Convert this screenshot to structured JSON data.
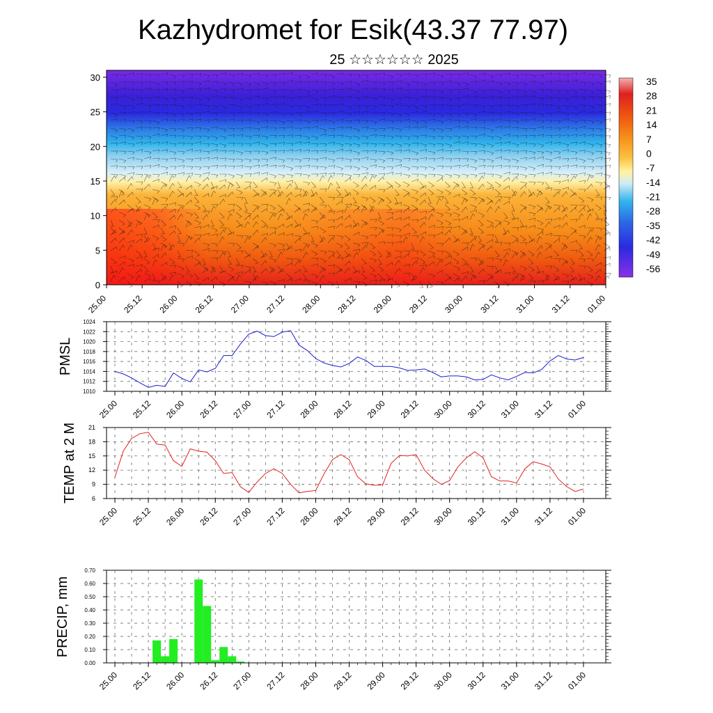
{
  "title": "Kazhydromet for Esik(43.37 77.97)",
  "subtitle": "25 ☆☆☆☆☆☆ 2025",
  "time_ticks": [
    "25.00",
    "25.12",
    "26.00",
    "26.12",
    "27.00",
    "27.12",
    "28.00",
    "28.12",
    "29.00",
    "29.12",
    "30.00",
    "30.12",
    "31.00",
    "31.12",
    "01.00"
  ],
  "colors": {
    "pmsl_line": "#1a1ad6",
    "temp_line": "#e02020",
    "precip_bar": "#22ee22"
  },
  "chart_data": [
    {
      "type": "heatmap",
      "title": "",
      "x_ticks": [
        "25.00",
        "25.12",
        "26.00",
        "26.12",
        "27.00",
        "27.12",
        "28.00",
        "28.12",
        "29.00",
        "29.12",
        "30.00",
        "30.12",
        "31.00",
        "31.12",
        "01.00"
      ],
      "y_ticks": [
        0,
        5,
        10,
        15,
        20,
        25,
        30
      ],
      "ylim": [
        0,
        31
      ],
      "colorbar_labels": [
        35,
        28,
        21,
        14,
        7,
        0,
        -7,
        -14,
        -21,
        -28,
        -35,
        -42,
        -49,
        -56
      ],
      "overlay": "wind barbs"
    },
    {
      "type": "line",
      "ylabel": "PMSL",
      "ylim": [
        1010,
        1024
      ],
      "y_ticks": [
        1010,
        1012,
        1014,
        1016,
        1018,
        1020,
        1022,
        1024
      ],
      "x_ticks": [
        "25.00",
        "25.12",
        "26.00",
        "26.12",
        "27.00",
        "27.12",
        "28.00",
        "28.12",
        "29.00",
        "29.12",
        "30.00",
        "30.12",
        "31.00",
        "31.12",
        "01.00"
      ],
      "hours_step": 3,
      "values": [
        1014.0,
        1013.5,
        1012.7,
        1011.7,
        1010.8,
        1011.2,
        1011.0,
        1013.7,
        1012.6,
        1011.9,
        1014.3,
        1013.9,
        1014.6,
        1017.2,
        1017.2,
        1019.5,
        1021.5,
        1022.1,
        1021.2,
        1021.0,
        1021.9,
        1022.2,
        1019.3,
        1018.2,
        1016.6,
        1015.7,
        1015.2,
        1014.9,
        1015.6,
        1016.9,
        1016.2,
        1015.0,
        1015.0,
        1015.0,
        1014.7,
        1014.2,
        1014.3,
        1014.5,
        1013.8,
        1012.9,
        1013.1,
        1013.1,
        1012.9,
        1012.3,
        1012.4,
        1013.3,
        1012.7,
        1012.3,
        1013.0,
        1013.8,
        1013.7,
        1014.4,
        1016.1,
        1017.2,
        1016.5,
        1016.3,
        1016.8
      ]
    },
    {
      "type": "line",
      "ylabel": "TEMP at 2 M",
      "ylim": [
        6,
        21
      ],
      "y_ticks": [
        6,
        9,
        12,
        15,
        18,
        21
      ],
      "x_ticks": [
        "25.00",
        "25.12",
        "26.00",
        "26.12",
        "27.00",
        "27.12",
        "28.00",
        "28.12",
        "29.00",
        "29.12",
        "30.00",
        "30.12",
        "31.00",
        "31.12",
        "01.00"
      ],
      "hours_step": 3,
      "values": [
        10.5,
        16.0,
        18.7,
        19.7,
        20.0,
        17.5,
        17.3,
        14.0,
        12.8,
        16.5,
        16.0,
        15.8,
        14.0,
        11.3,
        11.5,
        8.5,
        7.3,
        9.5,
        11.3,
        12.3,
        11.3,
        9.0,
        7.2,
        7.5,
        7.7,
        11.2,
        14.2,
        15.3,
        14.2,
        10.6,
        9.1,
        8.8,
        8.9,
        13.4,
        15.1,
        15.0,
        15.3,
        12.0,
        10.2,
        9.0,
        9.8,
        12.7,
        14.6,
        15.9,
        14.6,
        10.6,
        9.7,
        9.7,
        9.3,
        12.3,
        13.8,
        13.3,
        12.7,
        10.1,
        8.5,
        7.5,
        8.0
      ]
    },
    {
      "type": "bar",
      "ylabel": "PRECIP, mm",
      "ylim": [
        0,
        0.7
      ],
      "y_ticks": [
        "0.00",
        "0.10",
        "0.20",
        "0.30",
        "0.40",
        "0.50",
        "0.60",
        "0.70"
      ],
      "x_ticks": [
        "25.00",
        "25.12",
        "26.00",
        "26.12",
        "27.00",
        "27.12",
        "28.00",
        "28.12",
        "29.00",
        "29.12",
        "30.00",
        "30.12",
        "31.00",
        "31.12",
        "01.00"
      ],
      "hours_step": 3,
      "values": [
        0,
        0,
        0,
        0,
        0,
        0.17,
        0.05,
        0.18,
        0,
        0,
        0.63,
        0.43,
        0.02,
        0.12,
        0.05,
        0.01,
        0,
        0,
        0,
        0,
        0,
        0,
        0,
        0,
        0,
        0,
        0,
        0,
        0,
        0,
        0,
        0,
        0,
        0,
        0,
        0,
        0,
        0,
        0,
        0,
        0,
        0,
        0,
        0,
        0,
        0,
        0,
        0,
        0,
        0,
        0,
        0,
        0,
        0,
        0,
        0,
        0
      ]
    }
  ]
}
